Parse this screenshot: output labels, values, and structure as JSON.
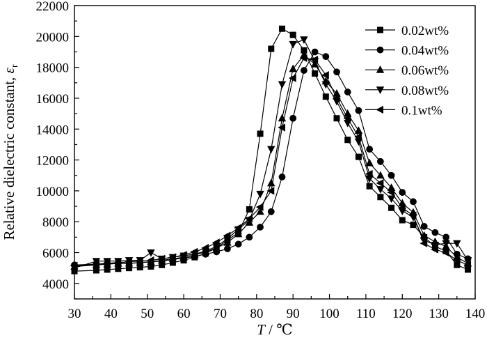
{
  "chart_data": {
    "type": "line",
    "title": "",
    "xlabel": {
      "italic": "T",
      "rest": " / ℃"
    },
    "ylabel": {
      "text": "Relative dielectric constant, ",
      "symbol": "ε",
      "subscript": "r"
    },
    "xlim": [
      30,
      140
    ],
    "ylim": [
      3000,
      22000
    ],
    "xticks": [
      30,
      40,
      50,
      60,
      70,
      80,
      90,
      100,
      110,
      120,
      130,
      140
    ],
    "yticks": [
      4000,
      6000,
      8000,
      10000,
      12000,
      14000,
      16000,
      18000,
      20000,
      22000
    ],
    "grid": false,
    "legend_position": "top-right",
    "series": [
      {
        "name": "0.02wt%",
        "marker": "square",
        "points": [
          [
            30,
            4800
          ],
          [
            36,
            4850
          ],
          [
            39,
            4900
          ],
          [
            42,
            4950
          ],
          [
            45,
            5000
          ],
          [
            48,
            5050
          ],
          [
            51,
            5100
          ],
          [
            54,
            5200
          ],
          [
            57,
            5350
          ],
          [
            60,
            5500
          ],
          [
            63,
            5700
          ],
          [
            66,
            5950
          ],
          [
            69,
            6300
          ],
          [
            72,
            6800
          ],
          [
            75,
            7300
          ],
          [
            78,
            8800
          ],
          [
            81,
            13700
          ],
          [
            84,
            19200
          ],
          [
            87,
            20500
          ],
          [
            90,
            20100
          ],
          [
            93,
            19100
          ],
          [
            96,
            17600
          ],
          [
            99,
            16100
          ],
          [
            102,
            14700
          ],
          [
            105,
            13300
          ],
          [
            108,
            12200
          ],
          [
            111,
            10300
          ],
          [
            114,
            9600
          ],
          [
            117,
            8900
          ],
          [
            120,
            8100
          ],
          [
            123,
            7800
          ],
          [
            126,
            7000
          ],
          [
            129,
            6400
          ],
          [
            132,
            6100
          ],
          [
            135,
            5200
          ],
          [
            138,
            4900
          ]
        ]
      },
      {
        "name": "0.04wt%",
        "marker": "circle",
        "points": [
          [
            30,
            5200
          ],
          [
            36,
            5250
          ],
          [
            39,
            5300
          ],
          [
            42,
            5300
          ],
          [
            45,
            5300
          ],
          [
            48,
            5350
          ],
          [
            51,
            5400
          ],
          [
            54,
            5450
          ],
          [
            57,
            5550
          ],
          [
            60,
            5650
          ],
          [
            63,
            5750
          ],
          [
            66,
            5900
          ],
          [
            69,
            6050
          ],
          [
            72,
            6250
          ],
          [
            75,
            6550
          ],
          [
            78,
            7000
          ],
          [
            81,
            7650
          ],
          [
            84,
            8650
          ],
          [
            87,
            10900
          ],
          [
            90,
            14700
          ],
          [
            93,
            17800
          ],
          [
            96,
            19000
          ],
          [
            99,
            18700
          ],
          [
            102,
            17700
          ],
          [
            105,
            16400
          ],
          [
            108,
            15200
          ],
          [
            111,
            12700
          ],
          [
            114,
            11900
          ],
          [
            117,
            11000
          ],
          [
            120,
            9900
          ],
          [
            123,
            9300
          ],
          [
            126,
            7700
          ],
          [
            129,
            7300
          ],
          [
            132,
            7000
          ],
          [
            135,
            5900
          ],
          [
            138,
            5600
          ]
        ]
      },
      {
        "name": "0.06wt%",
        "marker": "triangle-up",
        "points": [
          [
            30,
            5100
          ],
          [
            36,
            5200
          ],
          [
            39,
            5250
          ],
          [
            42,
            5300
          ],
          [
            45,
            5300
          ],
          [
            48,
            5350
          ],
          [
            51,
            5400
          ],
          [
            54,
            5500
          ],
          [
            57,
            5600
          ],
          [
            60,
            5700
          ],
          [
            63,
            5850
          ],
          [
            66,
            6050
          ],
          [
            69,
            6300
          ],
          [
            72,
            6650
          ],
          [
            75,
            7200
          ],
          [
            78,
            7950
          ],
          [
            81,
            8650
          ],
          [
            84,
            10500
          ],
          [
            87,
            14700
          ],
          [
            90,
            17900
          ],
          [
            93,
            18800
          ],
          [
            96,
            18200
          ],
          [
            99,
            17100
          ],
          [
            102,
            16300
          ],
          [
            105,
            15000
          ],
          [
            108,
            13900
          ],
          [
            111,
            11800
          ],
          [
            114,
            11000
          ],
          [
            117,
            10200
          ],
          [
            120,
            9200
          ],
          [
            123,
            8600
          ],
          [
            126,
            7100
          ],
          [
            129,
            6700
          ],
          [
            132,
            6400
          ],
          [
            135,
            5700
          ],
          [
            138,
            5300
          ]
        ]
      },
      {
        "name": "0.08wt%",
        "marker": "triangle-down",
        "points": [
          [
            30,
            5000
          ],
          [
            36,
            5450
          ],
          [
            39,
            5450
          ],
          [
            42,
            5450
          ],
          [
            45,
            5500
          ],
          [
            48,
            5500
          ],
          [
            51,
            6000
          ],
          [
            54,
            5600
          ],
          [
            57,
            5700
          ],
          [
            60,
            5800
          ],
          [
            63,
            5900
          ],
          [
            66,
            6100
          ],
          [
            69,
            6400
          ],
          [
            72,
            6900
          ],
          [
            75,
            7500
          ],
          [
            78,
            8100
          ],
          [
            81,
            9800
          ],
          [
            84,
            12700
          ],
          [
            87,
            16900
          ],
          [
            90,
            19500
          ],
          [
            93,
            19800
          ],
          [
            96,
            18400
          ],
          [
            99,
            16900
          ],
          [
            102,
            15800
          ],
          [
            105,
            14400
          ],
          [
            108,
            13200
          ],
          [
            111,
            10800
          ],
          [
            114,
            10100
          ],
          [
            117,
            9500
          ],
          [
            120,
            8700
          ],
          [
            123,
            8300
          ],
          [
            126,
            6800
          ],
          [
            129,
            6500
          ],
          [
            132,
            6600
          ],
          [
            135,
            6600
          ],
          [
            138,
            5500
          ]
        ]
      },
      {
        "name": "0.1wt%",
        "marker": "triangle-left",
        "points": [
          [
            30,
            5150
          ],
          [
            36,
            5250
          ],
          [
            39,
            5300
          ],
          [
            42,
            5350
          ],
          [
            45,
            5400
          ],
          [
            48,
            5450
          ],
          [
            51,
            5500
          ],
          [
            54,
            5600
          ],
          [
            57,
            5700
          ],
          [
            60,
            5850
          ],
          [
            63,
            6050
          ],
          [
            66,
            6300
          ],
          [
            69,
            6650
          ],
          [
            72,
            7100
          ],
          [
            75,
            7600
          ],
          [
            78,
            8200
          ],
          [
            81,
            8950
          ],
          [
            84,
            10000
          ],
          [
            87,
            14100
          ],
          [
            90,
            17300
          ],
          [
            93,
            18600
          ],
          [
            96,
            18500
          ],
          [
            99,
            17500
          ],
          [
            102,
            16000
          ],
          [
            105,
            14700
          ],
          [
            108,
            13500
          ],
          [
            111,
            11100
          ],
          [
            114,
            10500
          ],
          [
            117,
            9900
          ],
          [
            120,
            8900
          ],
          [
            123,
            8400
          ],
          [
            126,
            6600
          ],
          [
            129,
            6200
          ],
          [
            132,
            6000
          ],
          [
            135,
            5500
          ],
          [
            138,
            5200
          ]
        ]
      }
    ]
  }
}
